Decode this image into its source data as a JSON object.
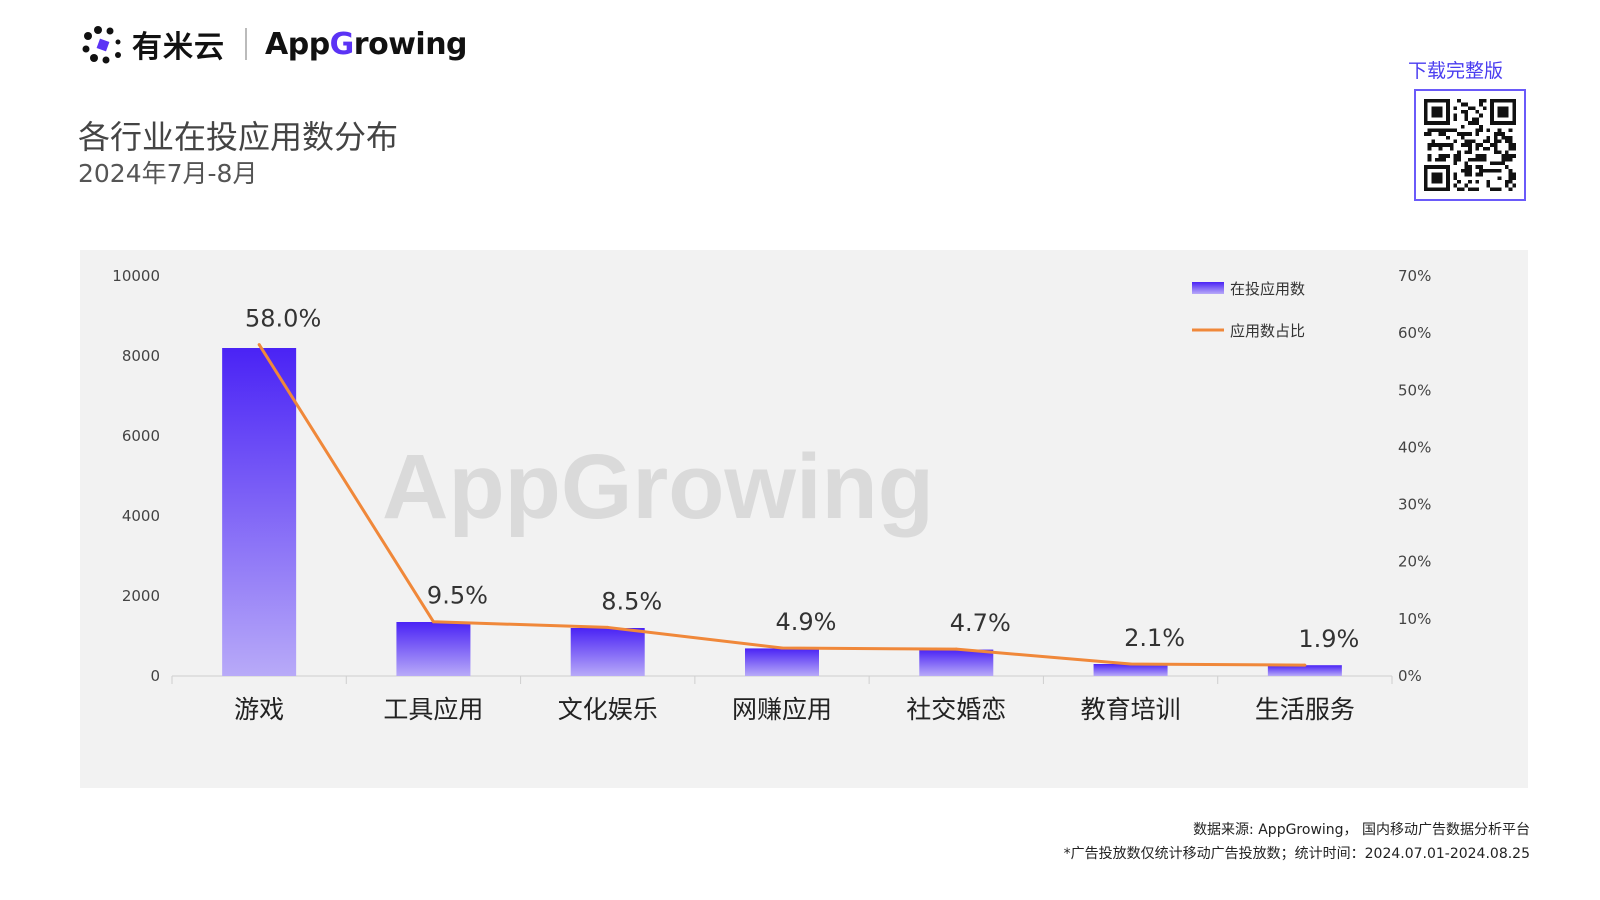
{
  "header": {
    "brand_cn": "有米云",
    "brand_en_left": "App",
    "brand_en_g": "G",
    "brand_en_right": "rowing"
  },
  "title": "各行业在投应用数分布",
  "subtitle": "2024年7月-8月",
  "download": {
    "label": "下载完整版"
  },
  "watermark": "AppGrowing",
  "chart_data": {
    "type": "bar",
    "categories": [
      "游戏",
      "工具应用",
      "文化娱乐",
      "网赚应用",
      "社交婚恋",
      "教育培训",
      "生活服务"
    ],
    "series": [
      {
        "name": "在投应用数",
        "type": "bar",
        "axis": "left",
        "values": [
          8200,
          1350,
          1200,
          690,
          660,
          300,
          270
        ]
      },
      {
        "name": "应用数占比",
        "type": "line",
        "axis": "right",
        "values": [
          58.0,
          9.5,
          8.5,
          4.9,
          4.7,
          2.1,
          1.9
        ]
      }
    ],
    "data_labels": [
      "58.0%",
      "9.5%",
      "8.5%",
      "4.9%",
      "4.7%",
      "2.1%",
      "1.9%"
    ],
    "ylim": [
      0,
      10000
    ],
    "yticks": [
      "0",
      "2000",
      "4000",
      "6000",
      "8000",
      "10000"
    ],
    "y2lim": [
      0,
      70
    ],
    "y2ticks": [
      "0%",
      "10%",
      "20%",
      "30%",
      "40%",
      "50%",
      "60%",
      "70%"
    ],
    "colors": {
      "bar_top": "#4a23f5",
      "bar_bottom": "#b8aaf8",
      "line": "#f0883a"
    },
    "legend_position": "top-right",
    "grid": false
  },
  "footer": {
    "source": "数据来源: AppGrowing， 国内移动广告数据分析平台",
    "note": "*广告投放数仅统计移动广告投放数；统计时间：2024.07.01-2024.08.25"
  }
}
